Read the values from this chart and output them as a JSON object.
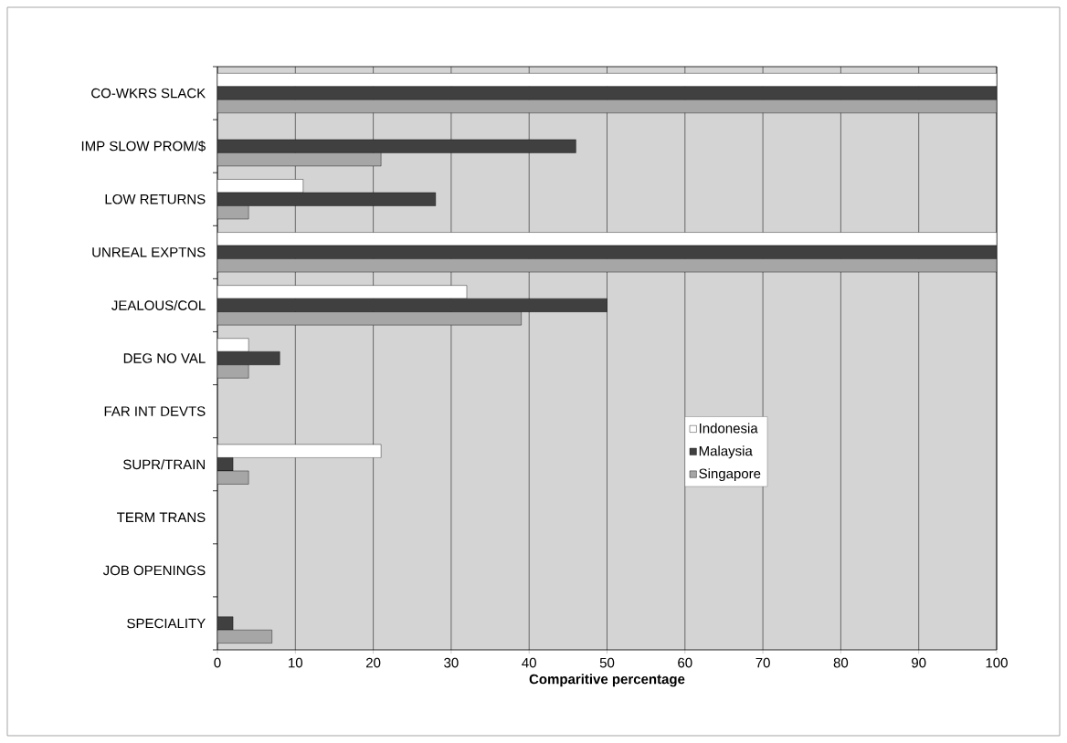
{
  "chart_data": {
    "type": "bar",
    "orientation": "horizontal",
    "xlabel": "Comparitive percentage",
    "categories": [
      "CO-WKRS SLACK",
      "IMP SLOW PROM/$",
      "LOW RETURNS",
      "UNREAL EXPTNS",
      "JEALOUS/COL",
      "DEG NO VAL",
      "FAR INT DEVTS",
      "SUPR/TRAIN",
      "TERM TRANS",
      "JOB OPENINGS",
      "SPECIALITY"
    ],
    "series": [
      {
        "name": "Indonesia",
        "color": "#ffffff",
        "values": [
          100,
          0,
          11,
          100,
          32,
          4,
          0,
          21,
          0,
          0,
          0
        ]
      },
      {
        "name": "Malaysia",
        "color": "#404040",
        "values": [
          100,
          46,
          28,
          100,
          50,
          8,
          0,
          2,
          0,
          0,
          2
        ]
      },
      {
        "name": "Singapore",
        "color": "#a6a6a6",
        "values": [
          100,
          21,
          4,
          100,
          39,
          4,
          0,
          4,
          0,
          0,
          7
        ]
      }
    ],
    "xlim": [
      0,
      100
    ],
    "xticks": [
      0,
      10,
      20,
      30,
      40,
      50,
      60,
      70,
      80,
      90,
      100
    ],
    "grid": "x",
    "legend": "right"
  }
}
